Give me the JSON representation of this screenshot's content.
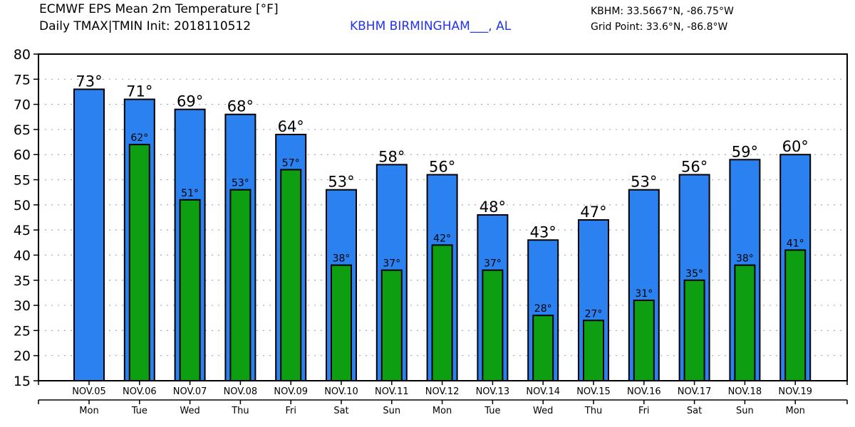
{
  "header": {
    "title_line1": "ECMWF EPS Mean 2m Temperature [°F]",
    "title_line2": "Daily TMAX|TMIN Init: 2018110512",
    "station": "KBHM BIRMINGHAM___, AL",
    "station_coords": "KBHM: 33.5667°N, -86.75°W",
    "grid_point": "Grid Point: 33.6°N, -86.8°W"
  },
  "colors": {
    "tmax": "#2b81ef",
    "tmin": "#0d9e12",
    "station_text": "#2233ee",
    "grid": "#aaaaaa"
  },
  "chart_data": {
    "type": "bar",
    "title": "ECMWF EPS Mean 2m Temperature [°F] — Daily TMAX|TMIN",
    "xlabel": "",
    "ylabel": "",
    "ylim": [
      15,
      80
    ],
    "yticks": [
      15,
      20,
      25,
      30,
      35,
      40,
      45,
      50,
      55,
      60,
      65,
      70,
      75,
      80
    ],
    "grid": "horizontal-dotted",
    "categories": [
      "NOV.05",
      "NOV.06",
      "NOV.07",
      "NOV.08",
      "NOV.09",
      "NOV.10",
      "NOV.11",
      "NOV.12",
      "NOV.13",
      "NOV.14",
      "NOV.15",
      "NOV.16",
      "NOV.17",
      "NOV.18",
      "NOV.19"
    ],
    "weekdays": [
      "Mon",
      "Tue",
      "Wed",
      "Thu",
      "Fri",
      "Sat",
      "Sun",
      "Mon",
      "Tue",
      "Wed",
      "Thu",
      "Fri",
      "Sat",
      "Sun",
      "Mon"
    ],
    "series": [
      {
        "name": "TMAX",
        "values": [
          73,
          71,
          69,
          68,
          64,
          53,
          58,
          56,
          48,
          43,
          47,
          53,
          56,
          59,
          60
        ],
        "labels": [
          "73°",
          "71°",
          "69°",
          "68°",
          "64°",
          "53°",
          "58°",
          "56°",
          "48°",
          "43°",
          "47°",
          "53°",
          "56°",
          "59°",
          "60°"
        ]
      },
      {
        "name": "TMIN",
        "values": [
          null,
          62,
          51,
          53,
          57,
          38,
          37,
          42,
          37,
          28,
          27,
          31,
          35,
          38,
          41
        ],
        "labels": [
          null,
          "62°",
          "51°",
          "53°",
          "57°",
          "38°",
          "37°",
          "42°",
          "37°",
          "28°",
          "27°",
          "31°",
          "35°",
          "38°",
          "41°"
        ]
      }
    ]
  }
}
